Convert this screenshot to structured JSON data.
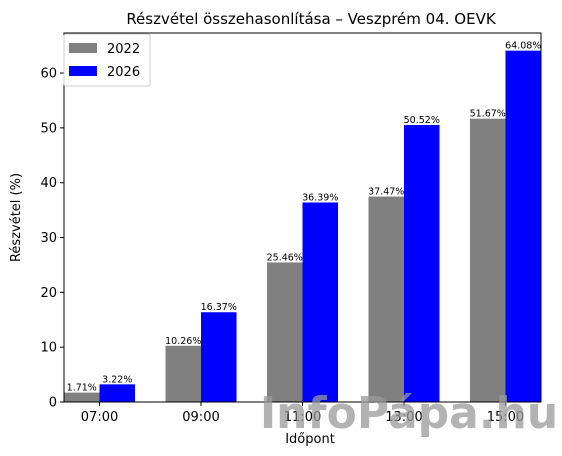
{
  "chart_data": {
    "type": "bar",
    "title": "Részvétel összehasonlítása – Veszprém 04. OEVK",
    "xlabel": "Időpont",
    "ylabel": "Részvétel (%)",
    "categories": [
      "07:00",
      "09:00",
      "11:00",
      "13:00",
      "15:00"
    ],
    "series": [
      {
        "name": "2022",
        "color": "#808080",
        "values": [
          1.71,
          10.26,
          25.46,
          37.47,
          51.67
        ],
        "labels": [
          "1.71%",
          "10.26%",
          "25.46%",
          "37.47%",
          "51.67%"
        ]
      },
      {
        "name": "2026",
        "color": "#0000ff",
        "values": [
          3.22,
          16.37,
          36.39,
          50.52,
          64.08
        ],
        "labels": [
          "3.22%",
          "16.37%",
          "36.39%",
          "50.52%",
          "64.08%"
        ]
      }
    ],
    "ylim": [
      0,
      67.3
    ],
    "yticks": [
      0,
      10,
      20,
      30,
      40,
      50,
      60
    ],
    "grid": false,
    "legend_position": "top-left"
  },
  "watermark": "InfoPápa.hu"
}
